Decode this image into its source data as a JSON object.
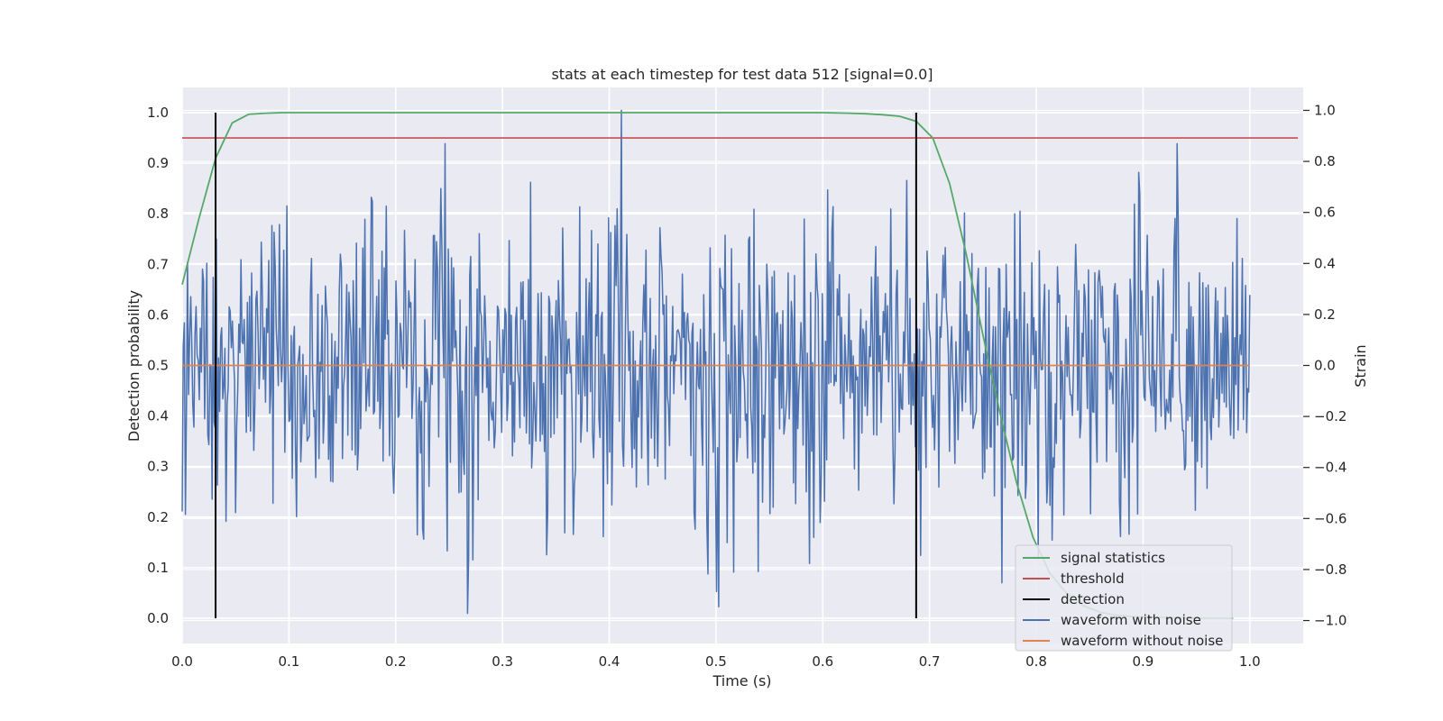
{
  "chart_data": {
    "type": "line",
    "title": "stats at each timestep for test data 512 [signal=0.0]",
    "xlabel": "Time (s)",
    "ylabel": "Detection probability",
    "y2label": "Strain",
    "xlim": [
      0.0,
      1.05
    ],
    "ylim": [
      -0.05,
      1.05
    ],
    "y2lim": [
      -1.09,
      1.09
    ],
    "xticks": [
      0.0,
      0.1,
      0.2,
      0.3,
      0.4,
      0.5,
      0.6,
      0.7,
      0.8,
      0.9,
      1.0
    ],
    "xtick_labels": [
      "0.0",
      "0.1",
      "0.2",
      "0.3",
      "0.4",
      "0.5",
      "0.6",
      "0.7",
      "0.8",
      "0.9",
      "1.0"
    ],
    "yticks": [
      0.0,
      0.1,
      0.2,
      0.3,
      0.4,
      0.5,
      0.6,
      0.7,
      0.8,
      0.9,
      1.0
    ],
    "ytick_labels": [
      "0.0",
      "0.1",
      "0.2",
      "0.3",
      "0.4",
      "0.5",
      "0.6",
      "0.7",
      "0.8",
      "0.9",
      "1.0"
    ],
    "y2ticks": [
      -1.0,
      -0.8,
      -0.6,
      -0.4,
      -0.2,
      0.0,
      0.2,
      0.4,
      0.6,
      0.8,
      1.0
    ],
    "y2tick_labels": [
      "−1.0",
      "−0.8",
      "−0.6",
      "−0.4",
      "−0.2",
      "0.0",
      "0.2",
      "0.4",
      "0.6",
      "0.8",
      "1.0"
    ],
    "grid": true,
    "legend_position": "lower-right",
    "background_color": "#eaeaf2",
    "series": [
      {
        "name": "signal statistics",
        "axis": "left",
        "color": "#55a868",
        "x": [
          0.0,
          0.0156,
          0.0313,
          0.0469,
          0.0625,
          0.0781,
          0.0938,
          0.1094,
          0.2,
          0.3,
          0.4,
          0.5,
          0.6,
          0.625,
          0.6406,
          0.6563,
          0.6719,
          0.6875,
          0.7031,
          0.7188,
          0.7344,
          0.75,
          0.7656,
          0.7813,
          0.7969,
          0.8125,
          0.8281,
          0.8438,
          0.8594,
          0.875,
          0.8906,
          0.9063,
          0.9219,
          0.9375,
          0.9531,
          0.9688,
          0.9844
        ],
        "y": [
          0.66,
          0.79,
          0.91,
          0.98,
          0.997,
          0.999,
          1.0,
          1.0,
          1.0,
          1.0,
          1.0,
          1.0,
          1.0,
          0.999,
          0.998,
          0.996,
          0.993,
          0.983,
          0.95,
          0.86,
          0.72,
          0.56,
          0.41,
          0.27,
          0.16,
          0.09,
          0.05,
          0.025,
          0.012,
          0.006,
          0.003,
          0.002,
          0.001,
          0.001,
          0.0,
          0.0,
          0.0
        ]
      },
      {
        "name": "threshold",
        "axis": "left",
        "color": "#c44e52",
        "x": [
          0.0,
          1.045
        ],
        "y": [
          0.95,
          0.95
        ]
      },
      {
        "name": "detection",
        "axis": "left",
        "color": "#000000",
        "vlines": [
          0.0313,
          0.6875
        ],
        "ymin": 0.0,
        "ymax": 1.0
      },
      {
        "name": "waveform with noise",
        "axis": "right",
        "color": "#4c72b0",
        "samples": 1000,
        "x_range": [
          0.0,
          1.0
        ],
        "y_range": [
          -1.0,
          1.0
        ]
      },
      {
        "name": "waveform without noise",
        "axis": "right",
        "color": "#dd8452",
        "x": [
          0.0,
          1.0
        ],
        "y": [
          0.0,
          0.0
        ]
      }
    ]
  }
}
